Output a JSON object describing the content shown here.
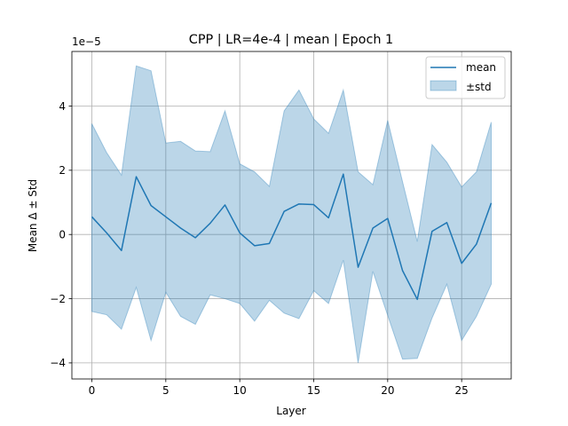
{
  "chart_data": {
    "type": "line",
    "title": "CPP | LR=4e-4 | mean | Epoch 1",
    "xlabel": "Layer",
    "ylabel": "Mean Δ ± Std",
    "y_offset_label": "1e−5",
    "xlim": [
      -1.35,
      28.35
    ],
    "ylim": [
      -4.5,
      5.7
    ],
    "xticks": [
      0,
      5,
      10,
      15,
      20,
      25
    ],
    "yticks": [
      -4,
      -2,
      0,
      2,
      4
    ],
    "grid": true,
    "legend_position": "top-right",
    "x": [
      0,
      1,
      2,
      3,
      4,
      5,
      6,
      7,
      8,
      9,
      10,
      11,
      12,
      13,
      14,
      15,
      16,
      17,
      18,
      19,
      20,
      21,
      22,
      23,
      24,
      25,
      26,
      27
    ],
    "series": [
      {
        "name": "mean",
        "color": "#1f77b4",
        "values": [
          0.55,
          0.05,
          -0.5,
          1.8,
          0.9,
          0.55,
          0.2,
          -0.1,
          0.35,
          0.92,
          0.05,
          -0.35,
          -0.28,
          0.72,
          0.95,
          0.93,
          0.52,
          1.88,
          -1.02,
          0.2,
          0.5,
          -1.12,
          -2.02,
          0.1,
          0.37,
          -0.9,
          -0.3,
          0.98
        ]
      },
      {
        "name": "±std",
        "color": "#1f77b4",
        "fill_opacity": 0.3,
        "upper": [
          3.45,
          2.55,
          1.85,
          5.25,
          5.1,
          2.85,
          2.9,
          2.6,
          2.58,
          3.85,
          2.2,
          1.95,
          1.5,
          3.85,
          4.5,
          3.6,
          3.15,
          4.5,
          1.95,
          1.55,
          3.55,
          1.65,
          -0.22,
          2.8,
          2.25,
          1.48,
          1.95,
          3.5
        ],
        "lower": [
          -2.4,
          -2.5,
          -2.95,
          -1.65,
          -3.3,
          -1.8,
          -2.55,
          -2.8,
          -1.88,
          -2.0,
          -2.15,
          -2.7,
          -2.05,
          -2.45,
          -2.62,
          -1.75,
          -2.15,
          -0.8,
          -4.0,
          -1.15,
          -2.52,
          -3.88,
          -3.86,
          -2.6,
          -1.55,
          -3.3,
          -2.55,
          -1.55
        ]
      }
    ]
  }
}
